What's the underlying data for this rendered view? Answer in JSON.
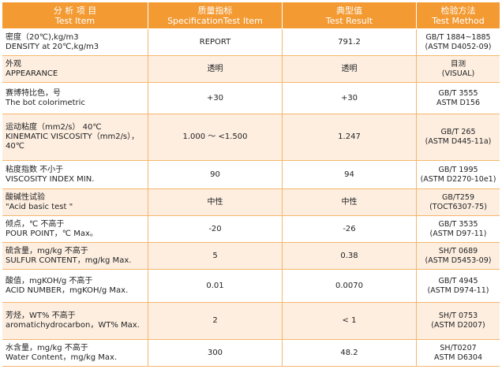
{
  "header": {
    "item_zh": "分 析 项 目",
    "item_en": "Test Item",
    "spec_zh": "质量指标",
    "spec_en": "SpecificationTest Item",
    "result_zh": "典型值",
    "result_en": "Test Result",
    "method_zh": "检验方法",
    "method_en": "Test Method"
  },
  "rows": [
    {
      "item_l1": "密度（20℃),kg/m3",
      "item_l2": "DENSITY at 20℃,kg/m3",
      "spec": "REPORT",
      "result": "791.2",
      "method_l1": "GB/T 1884~1885",
      "method_l2": "(ASTM D4052-09)"
    },
    {
      "item_l1": "外观",
      "item_l2": "APPEARANCE",
      "spec": "透明",
      "result": "透明",
      "method_l1": "目测",
      "method_l2": "(VISUAL)"
    },
    {
      "item_l1": "赛博特比色，号",
      "item_l2": "The bot colorimetric",
      "spec": "+30",
      "result": "+30",
      "method_l1": "GB/T 3555",
      "method_l2": "ASTM D156"
    },
    {
      "item_l1": "运动粘度（mm2/s） 40℃",
      "item_l2": "KINEMATIC VISCOSITY（mm2/s），40℃",
      "spec": "1.000 ～ <1.500",
      "result": "1.247",
      "method_l1": "GB/T 265",
      "method_l2": "(ASTM D445-11a)"
    },
    {
      "item_l1": "粘度指数  不小于",
      "item_l2": "VISCOSITY INDEX  MIN.",
      "spec": "90",
      "result": "94",
      "method_l1": "GB/T 1995",
      "method_l2": "(ASTM D2270-10e1)"
    },
    {
      "item_l1": "酸碱性试验",
      "item_l2": "\"Acid basic test \"",
      "spec": "中性",
      "result": "中性",
      "method_l1": "GB/T259",
      "method_l2": "(TOCT6307-75)"
    },
    {
      "item_l1": "倾点，℃  不高于",
      "item_l2": "POUR POINT，℃ Max。",
      "spec": "-20",
      "result": "-26",
      "method_l1": "GB/T 3535",
      "method_l2": "(ASTM D97-11)"
    },
    {
      "item_l1": "硫含量，mg/kg  不高于",
      "item_l2": "SULFUR CONTENT，mg/kg Max.",
      "spec": "5",
      "result": "0.38",
      "method_l1": "SH/T 0689",
      "method_l2": "(ASTM D5453-09)"
    },
    {
      "item_l1": "酸值，mgKOH/g  不高于",
      "item_l2": "ACID NUMBER，mgKOH/g Max.",
      "spec": "0.01",
      "result": "0.0070",
      "method_l1": "GB/T 4945",
      "method_l2": "(ASTM D974-11)"
    },
    {
      "item_l1": "芳烃，WT%  不高于",
      "item_l2": "aromatichydrocarbon，WT% Max.",
      "spec": "2",
      "result": "< 1",
      "method_l1": "SH/T 0753",
      "method_l2": "(ASTM D2007)"
    },
    {
      "item_l1": "水含量，mg/kg  不高于",
      "item_l2": "Water Content，mg/kg  Max.",
      "spec": "300",
      "result": "48.2",
      "method_l1": "SH/T0207",
      "method_l2": "ASTM D6304"
    }
  ]
}
